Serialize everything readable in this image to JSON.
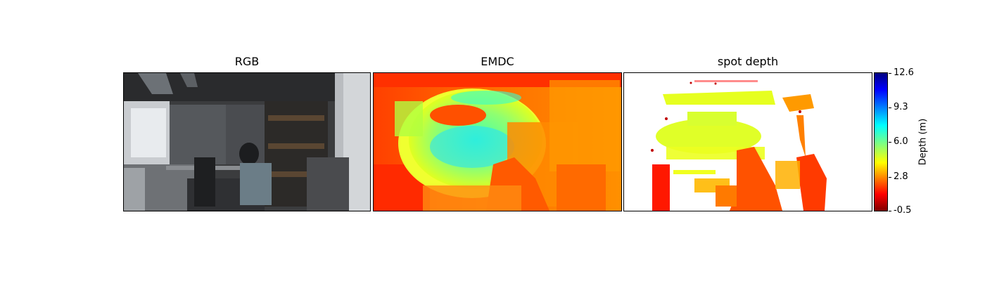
{
  "panels": [
    {
      "id": "rgb",
      "title": "RGB"
    },
    {
      "id": "emdc",
      "title": "EMDC"
    },
    {
      "id": "spot",
      "title": "spot depth"
    }
  ],
  "colorbar": {
    "label": "Depth (m)",
    "ticks": [
      "12.6",
      "9.3",
      "6.0",
      "2.8",
      "-0.5"
    ],
    "colormap": "jet",
    "min": -0.5,
    "max": 12.6
  },
  "colors": {
    "jet_low": "#7f0000",
    "jet_red": "#ff0000",
    "jet_orange": "#ff8000",
    "jet_yellow": "#ffff00",
    "jet_cyan": "#00ffff",
    "jet_blue": "#0000ff",
    "jet_high": "#00007f"
  }
}
